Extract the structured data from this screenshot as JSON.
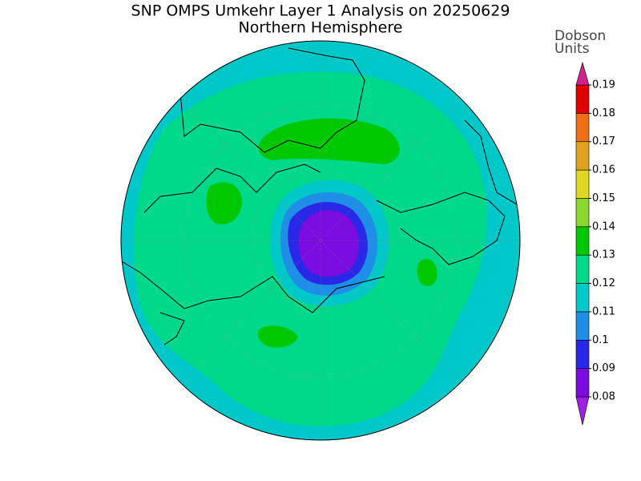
{
  "map": {
    "title": "SNP OMPS Umkehr Layer 1 Analysis on 20250629",
    "subtitle": "Northern Hemisphere",
    "colorbar": {
      "label_lines": [
        "Dobson",
        "Units"
      ],
      "ticks": [
        0.08,
        0.09,
        0.1,
        0.11,
        0.12,
        0.13,
        0.14,
        0.15,
        0.16,
        0.17,
        0.18,
        0.19
      ],
      "colors": [
        "#a020e0",
        "#7a0ce0",
        "#2828e6",
        "#1e8ee6",
        "#00c8c8",
        "#00d88a",
        "#00c800",
        "#8cd832",
        "#e0d820",
        "#e0a020",
        "#f07018",
        "#e00000",
        "#d0208c"
      ]
    }
  }
}
